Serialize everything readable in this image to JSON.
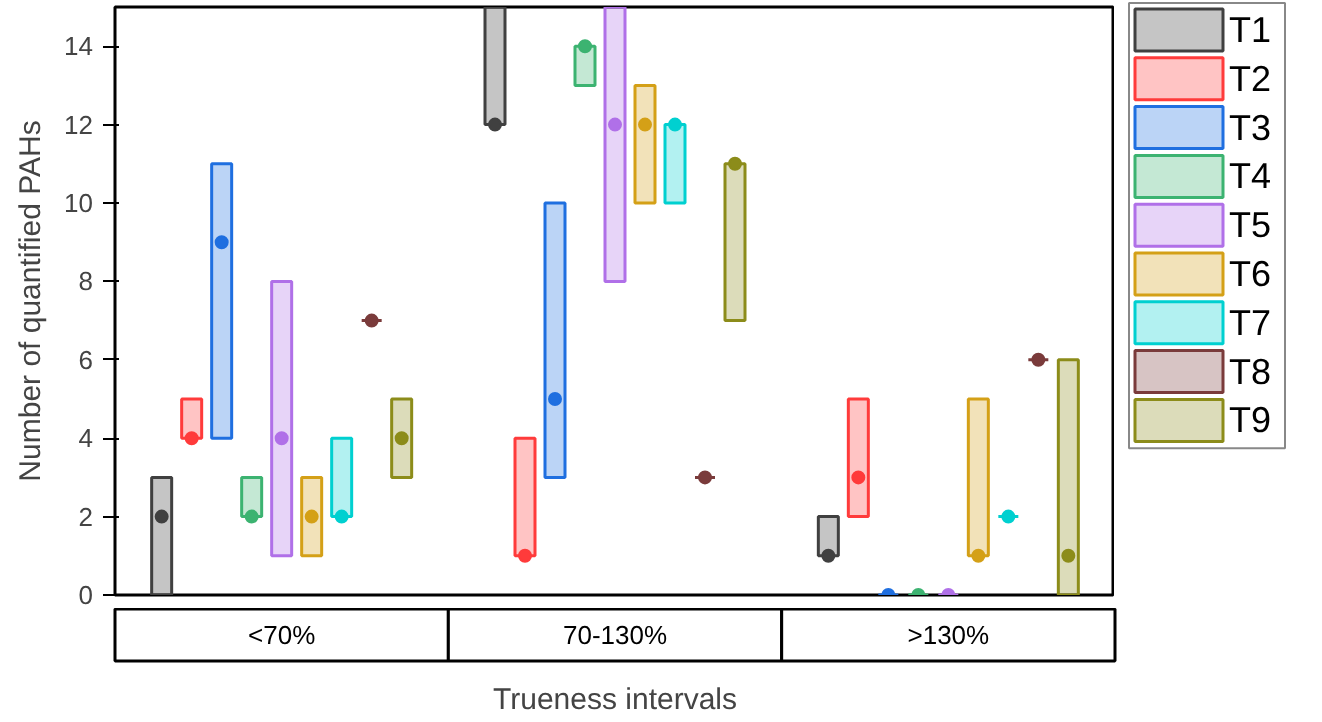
{
  "chart_data": {
    "type": "bar",
    "xlabel": "Trueness intervals",
    "ylabel": "Number of quantified PAHs",
    "categories": [
      "<70%",
      "70-130%",
      ">130%"
    ],
    "ylim": [
      0,
      15
    ],
    "yticks": [
      0,
      2,
      4,
      6,
      8,
      10,
      12,
      14
    ],
    "grid": false,
    "legend": "right",
    "series": [
      {
        "name": "T1",
        "color": "#404040",
        "base": [
          0,
          12,
          1
        ],
        "values": [
          3,
          3,
          1
        ]
      },
      {
        "name": "T2",
        "color": "#ff3b3b",
        "base": [
          4,
          1,
          2
        ],
        "values": [
          1,
          3,
          3
        ]
      },
      {
        "name": "T3",
        "color": "#1f6fe0",
        "base": [
          4,
          3,
          0
        ],
        "values": [
          7,
          7,
          0
        ]
      },
      {
        "name": "T4",
        "color": "#3cb371",
        "base": [
          2,
          13,
          0
        ],
        "values": [
          1,
          1,
          0
        ]
      },
      {
        "name": "T5",
        "color": "#b070e8",
        "base": [
          1,
          8,
          0
        ],
        "values": [
          7,
          7,
          0
        ]
      },
      {
        "name": "T6",
        "color": "#d4a017",
        "base": [
          1,
          10,
          1
        ],
        "values": [
          2,
          3,
          4
        ]
      },
      {
        "name": "T7",
        "color": "#00d0d0",
        "base": [
          2,
          10,
          2
        ],
        "values": [
          2,
          2,
          0
        ]
      },
      {
        "name": "T8",
        "color": "#7a3b3b",
        "base": [
          7,
          3,
          6
        ],
        "values": [
          0,
          0,
          0
        ]
      },
      {
        "name": "T9",
        "color": "#8c8c1a",
        "base": [
          3,
          7,
          0
        ],
        "values": [
          2,
          4,
          6
        ]
      },
      {
        "type": "scatter",
        "marker": "circle",
        "color": "#404040",
        "values": [
          2,
          12,
          1
        ]
      },
      {
        "type": "scatter",
        "marker": "circle",
        "color": "#ff3b3b",
        "values": [
          4,
          1,
          3
        ]
      },
      {
        "type": "scatter",
        "marker": "circle",
        "color": "#1f6fe0",
        "values": [
          9,
          5,
          0
        ]
      },
      {
        "type": "scatter",
        "marker": "circle",
        "color": "#3cb371",
        "values": [
          2,
          14,
          0
        ]
      },
      {
        "type": "scatter",
        "marker": "circle",
        "color": "#b070e8",
        "values": [
          4,
          12,
          0
        ]
      },
      {
        "type": "scatter",
        "marker": "circle",
        "color": "#d4a017",
        "values": [
          2,
          12,
          1
        ]
      },
      {
        "type": "scatter",
        "marker": "circle",
        "color": "#00d0d0",
        "values": [
          2,
          12,
          2
        ]
      },
      {
        "type": "scatter",
        "marker": "circle",
        "color": "#7a3b3b",
        "values": [
          7,
          3,
          6
        ]
      },
      {
        "type": "scatter",
        "marker": "circle",
        "color": "#8c8c1a",
        "values": [
          4,
          11,
          1
        ]
      }
    ]
  }
}
